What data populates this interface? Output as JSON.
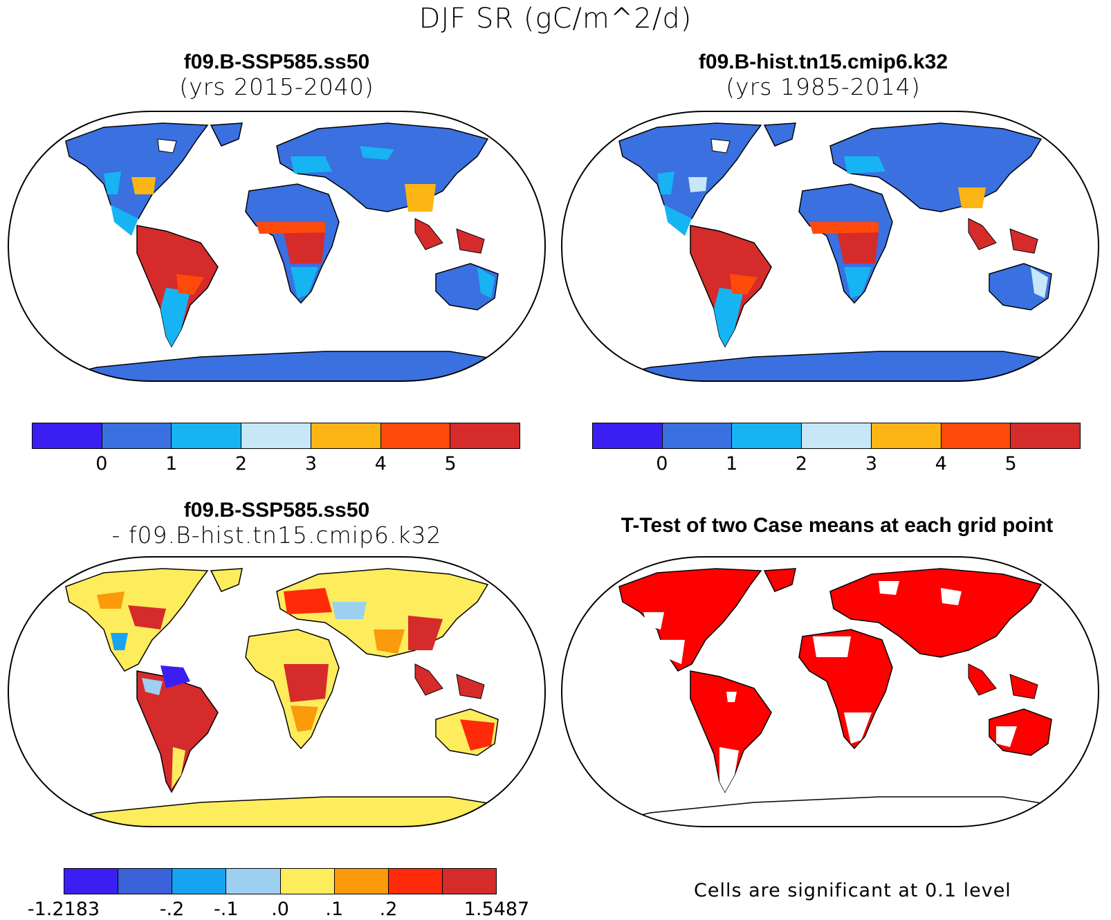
{
  "title": "DJF SR (gC/m^2/d)",
  "panels": {
    "top_left": {
      "title": "f09.B-SSP585.ss50",
      "subtitle": "(yrs 2015-2040)"
    },
    "top_right": {
      "title": "f09.B-hist.tn15.cmip6.k32",
      "subtitle": "(yrs 1985-2014)"
    },
    "bottom_left": {
      "title": "f09.B-SSP585.ss50",
      "subtitle": "- f09.B-hist.tn15.cmip6.k32"
    },
    "bottom_right": {
      "title": "T-Test of two Case means at each grid point",
      "note": "Cells are significant at 0.1 level"
    }
  },
  "colorbars": {
    "absolute": {
      "colors": [
        "#3b1ff2",
        "#3a70e0",
        "#16b4f2",
        "#c7e6f7",
        "#fbb514",
        "#fe4a0a",
        "#d52b2b"
      ],
      "labels": [
        "0",
        "1",
        "2",
        "3",
        "4",
        "5"
      ]
    },
    "difference": {
      "colors": [
        "#3b1ff2",
        "#3a62d9",
        "#16a4f2",
        "#9ccff0",
        "#fdec5c",
        "#fb9a0a",
        "#fe2a0a",
        "#d52b2b"
      ],
      "labels": [
        "-1.2183",
        "-.2",
        "-.1",
        ".0",
        ".1",
        ".2",
        "1.5487"
      ]
    }
  },
  "ttest_color": "#ff0000",
  "ocean_color": "#ffffff"
}
